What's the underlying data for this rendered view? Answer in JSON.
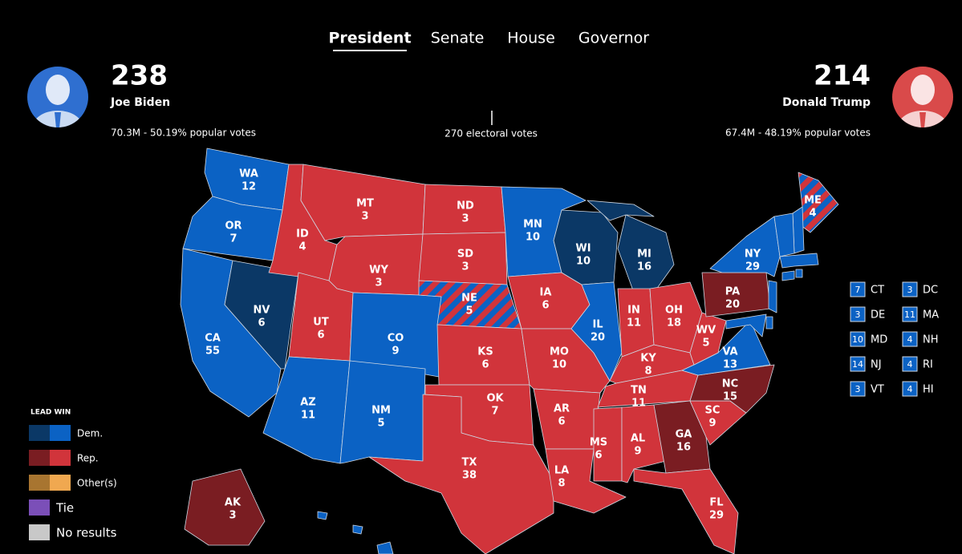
{
  "tabs": {
    "items": [
      "President",
      "Senate",
      "House",
      "Governor"
    ],
    "active": 0
  },
  "candidates": [
    {
      "votes": "238",
      "name": "Joe Biden",
      "popular": "70.3M - 50.19% popular votes",
      "side": "left",
      "color": "#2f6fd0"
    },
    {
      "votes": "214",
      "name": "Donald Trump",
      "popular": "67.4M - 48.19% popular votes",
      "side": "right",
      "color": "#d94a4a"
    }
  ],
  "threshold": "270 electoral votes",
  "legend": {
    "title": "LEAD WIN",
    "items": [
      {
        "label": "Dem.",
        "colors": [
          "#0b3866",
          "#0b62c4"
        ]
      },
      {
        "label": "Rep.",
        "colors": [
          "#7a1d22",
          "#d1343b"
        ]
      },
      {
        "label": "Other(s)",
        "colors": [
          "#a87530",
          "#f0a850"
        ]
      },
      {
        "label": "Tie",
        "colors": [
          "#7b4fb8"
        ]
      },
      {
        "label": "No results",
        "colors": [
          "#c8c8c8"
        ]
      }
    ]
  },
  "map": {
    "states": [
      {
        "abbr": "WA",
        "votes": "12",
        "party": 0,
        "lead": false
      },
      {
        "abbr": "OR",
        "votes": "7",
        "party": 0,
        "lead": false
      },
      {
        "abbr": "CA",
        "votes": "55",
        "party": 0,
        "lead": false
      },
      {
        "abbr": "NV",
        "votes": "6",
        "party": 0,
        "lead": true
      },
      {
        "abbr": "ID",
        "votes": "4",
        "party": 1,
        "lead": false
      },
      {
        "abbr": "MT",
        "votes": "3",
        "party": 1,
        "lead": false
      },
      {
        "abbr": "WY",
        "votes": "3",
        "party": 1,
        "lead": false
      },
      {
        "abbr": "UT",
        "votes": "6",
        "party": 1,
        "lead": false
      },
      {
        "abbr": "CO",
        "votes": "9",
        "party": 0,
        "lead": false
      },
      {
        "abbr": "AZ",
        "votes": "11",
        "party": 0,
        "lead": false
      },
      {
        "abbr": "NM",
        "votes": "5",
        "party": 0,
        "lead": false
      },
      {
        "abbr": "ND",
        "votes": "3",
        "party": 1,
        "lead": false
      },
      {
        "abbr": "SD",
        "votes": "3",
        "party": 1,
        "lead": false
      },
      {
        "abbr": "NE",
        "votes": "5",
        "party": [
          1,
          0
        ],
        "lead": false
      },
      {
        "abbr": "KS",
        "votes": "6",
        "party": 1,
        "lead": false
      },
      {
        "abbr": "OK",
        "votes": "7",
        "party": 1,
        "lead": false
      },
      {
        "abbr": "TX",
        "votes": "38",
        "party": 1,
        "lead": false
      },
      {
        "abbr": "MN",
        "votes": "10",
        "party": 0,
        "lead": false
      },
      {
        "abbr": "IA",
        "votes": "6",
        "party": 1,
        "lead": false
      },
      {
        "abbr": "MO",
        "votes": "10",
        "party": 1,
        "lead": false
      },
      {
        "abbr": "AR",
        "votes": "6",
        "party": 1,
        "lead": false
      },
      {
        "abbr": "LA",
        "votes": "8",
        "party": 1,
        "lead": false
      },
      {
        "abbr": "WI",
        "votes": "10",
        "party": 0,
        "lead": true
      },
      {
        "abbr": "IL",
        "votes": "20",
        "party": 0,
        "lead": false
      },
      {
        "abbr": "MI",
        "votes": "16",
        "party": 0,
        "lead": true
      },
      {
        "abbr": "IN",
        "votes": "11",
        "party": 1,
        "lead": false
      },
      {
        "abbr": "OH",
        "votes": "18",
        "party": 1,
        "lead": false
      },
      {
        "abbr": "KY",
        "votes": "8",
        "party": 1,
        "lead": false
      },
      {
        "abbr": "TN",
        "votes": "11",
        "party": 1,
        "lead": false
      },
      {
        "abbr": "MS",
        "votes": "6",
        "party": 1,
        "lead": false
      },
      {
        "abbr": "AL",
        "votes": "9",
        "party": 1,
        "lead": false
      },
      {
        "abbr": "GA",
        "votes": "16",
        "party": 1,
        "lead": true
      },
      {
        "abbr": "FL",
        "votes": "29",
        "party": 1,
        "lead": false
      },
      {
        "abbr": "SC",
        "votes": "9",
        "party": 1,
        "lead": false
      },
      {
        "abbr": "NC",
        "votes": "15",
        "party": 1,
        "lead": true
      },
      {
        "abbr": "VA",
        "votes": "13",
        "party": 0,
        "lead": false
      },
      {
        "abbr": "WV",
        "votes": "5",
        "party": 1,
        "lead": false
      },
      {
        "abbr": "PA",
        "votes": "20",
        "party": 1,
        "lead": true
      },
      {
        "abbr": "NY",
        "votes": "29",
        "party": 0,
        "lead": false
      },
      {
        "abbr": "ME",
        "votes": "4",
        "party": [
          1,
          0
        ],
        "lead": false
      },
      {
        "abbr": "AK",
        "votes": "3",
        "party": 1,
        "lead": true
      }
    ],
    "small_states": [
      {
        "abbr": "CT",
        "votes": "7",
        "party": 0,
        "lead": false
      },
      {
        "abbr": "DC",
        "votes": "3",
        "party": 0,
        "lead": false
      },
      {
        "abbr": "DE",
        "votes": "3",
        "party": 0,
        "lead": false
      },
      {
        "abbr": "MA",
        "votes": "11",
        "party": 0,
        "lead": false
      },
      {
        "abbr": "MD",
        "votes": "10",
        "party": 0,
        "lead": false
      },
      {
        "abbr": "NH",
        "votes": "4",
        "party": 0,
        "lead": false
      },
      {
        "abbr": "NJ",
        "votes": "14",
        "party": 0,
        "lead": false
      },
      {
        "abbr": "RI",
        "votes": "4",
        "party": 0,
        "lead": false
      },
      {
        "abbr": "VT",
        "votes": "3",
        "party": 0,
        "lead": false
      },
      {
        "abbr": "HI",
        "votes": "4",
        "party": 0,
        "lead": false
      }
    ]
  }
}
